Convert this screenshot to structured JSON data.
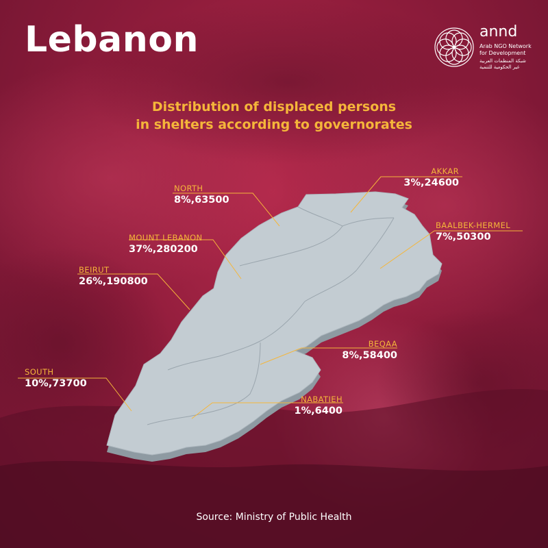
{
  "title": "Lebanon",
  "logo": {
    "name": "annd",
    "subtitle_line1": "Arab NGO Network",
    "subtitle_line2": "for Development",
    "arabic_line1": "شبكة المنظمات العربية",
    "arabic_line2": "غير الحكومية للتنمية",
    "icon": "flower-ring-logo-icon"
  },
  "subtitle": {
    "line1": "Distribution of displaced persons",
    "line2": "in shelters according to governorates"
  },
  "governorates": [
    {
      "key": "akkar",
      "name": "AKKAR",
      "value": "3%,24600"
    },
    {
      "key": "north",
      "name": "NORTH",
      "value": "8%,63500"
    },
    {
      "key": "baalbek_hermel",
      "name": "BAALBEK-HERMEL",
      "value": "7%,50300"
    },
    {
      "key": "mount_lebanon",
      "name": "MOUNT LEBANON",
      "value": "37%,280200"
    },
    {
      "key": "beirut",
      "name": "BEIRUT",
      "value": "26%,190800"
    },
    {
      "key": "beqaa",
      "name": "BEQAA",
      "value": "8%,58400"
    },
    {
      "key": "south",
      "name": "SOUTH",
      "value": "10%,73700"
    },
    {
      "key": "nabatieh",
      "name": "NABATIEH",
      "value": "1%,6400"
    }
  ],
  "source": "Source: Ministry of Public Health",
  "colors": {
    "background": "#8f1c3b",
    "map_fill": "#c3ccd2",
    "map_side": "#8e9aa2",
    "label_name": "#f5b63a",
    "label_value": "#ffffff",
    "leader_line": "#f5b63a",
    "subtitle": "#f5b63a"
  }
}
